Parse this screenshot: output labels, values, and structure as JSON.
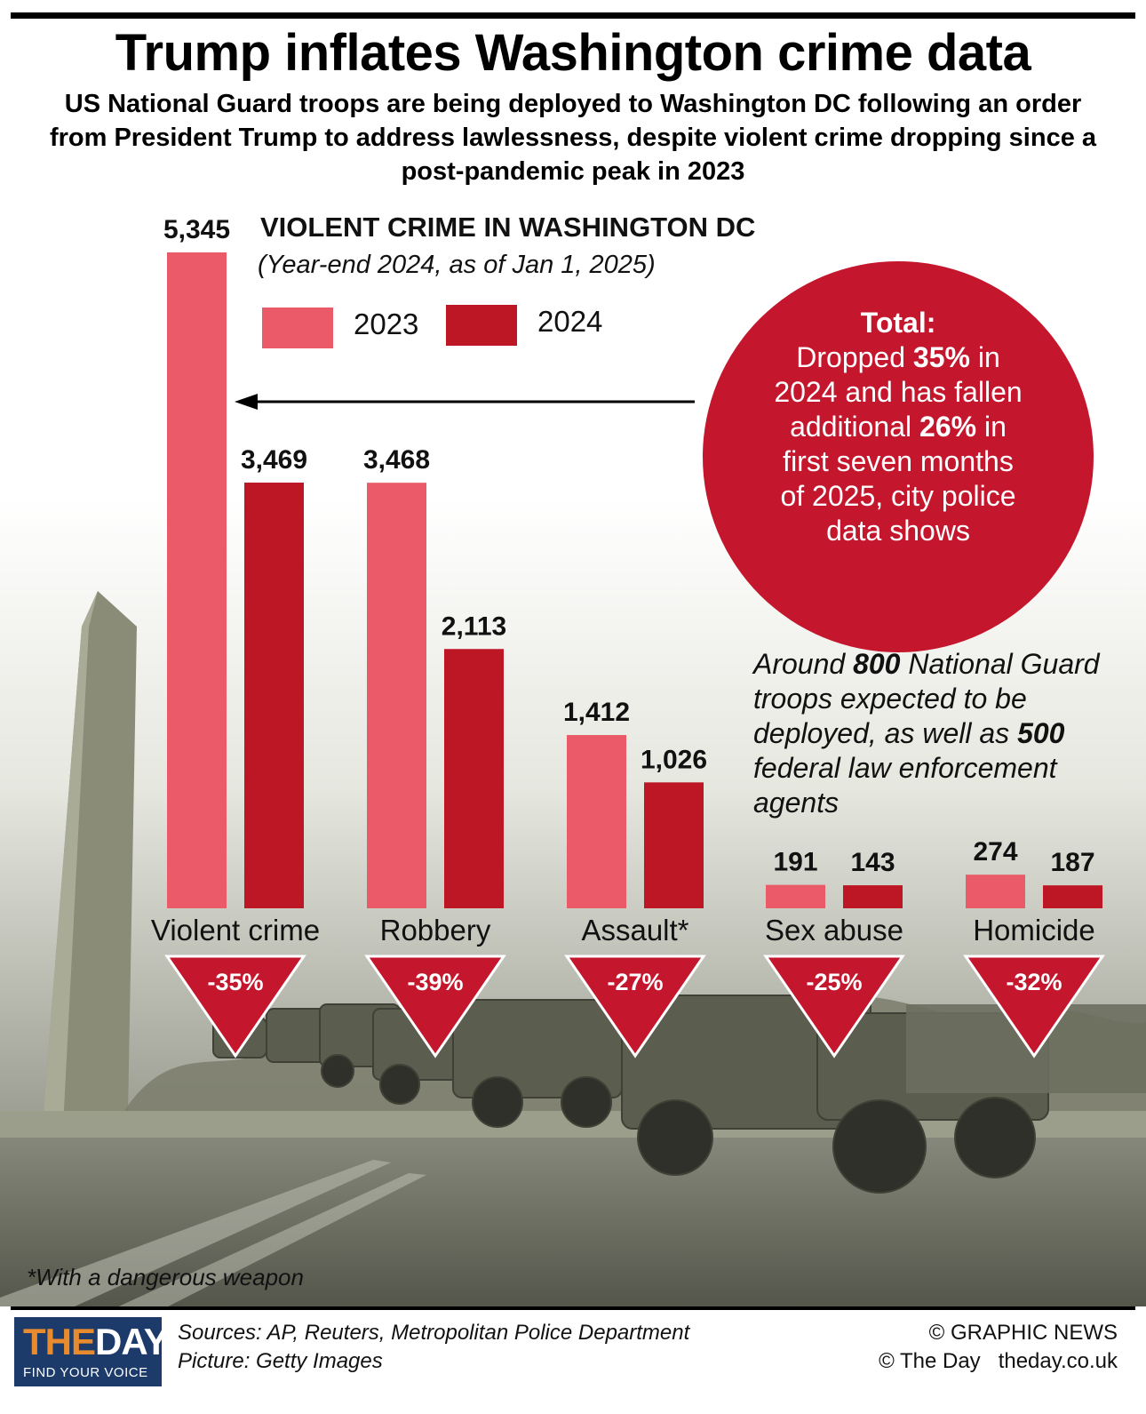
{
  "headline": "Trump inflates Washington crime data",
  "subheadline": "US National Guard troops are being deployed to Washington DC following an order from President Trump to address lawlessness, despite violent crime dropping since a post-pandemic peak in 2023",
  "chart_data": {
    "type": "bar",
    "title": "VIOLENT CRIME IN WASHINGTON DC",
    "subtitle": "(Year-end 2024, as of Jan 1, 2025)",
    "categories": [
      "Violent crime",
      "Robbery",
      "Assault*",
      "Sex abuse",
      "Homicide"
    ],
    "series": [
      {
        "name": "2023",
        "color": "#ea5a68",
        "values": [
          5345,
          3468,
          1412,
          191,
          274
        ],
        "labels": [
          "5,345",
          "3,468",
          "1,412",
          "191",
          "274"
        ]
      },
      {
        "name": "2024",
        "color": "#bd1625",
        "values": [
          3469,
          2113,
          1026,
          143,
          187
        ],
        "labels": [
          "3,469",
          "2,113",
          "1,026",
          "143",
          "187"
        ]
      }
    ],
    "changes": [
      "-35%",
      "-39%",
      "-27%",
      "-25%",
      "-32%"
    ],
    "ylim": [
      0,
      5345
    ],
    "grid": false,
    "legend_position": "top"
  },
  "callout": {
    "heading": "Total:",
    "line1_a": "Dropped ",
    "line1_b": "35%",
    "line1_c": " in",
    "line2": "2024 and has fallen",
    "line3_a": "additional ",
    "line3_b": "26%",
    "line3_c": " in",
    "line4": "first seven months",
    "line5": "of 2025, city police",
    "line6": "data shows"
  },
  "troops_note": {
    "a": "Around ",
    "b": "800",
    "c": " National Guard troops expected to be deployed, as well as ",
    "d": "500",
    "e": " federal law enforcement agents"
  },
  "footnote": "*With a dangerous weapon",
  "footer": {
    "logo_the": "THE",
    "logo_day": "DAY",
    "logo_tagline": "FIND YOUR VOICE",
    "sources": "Sources: AP, Reuters, Metropolitan Police Department",
    "picture": "Picture: Getty Images",
    "credit1": "© GRAPHIC NEWS",
    "credit2": "© The Day   theday.co.uk"
  },
  "colors": {
    "accent_red": "#c4162c",
    "bar_2023": "#ea5a68",
    "bar_2024": "#bd1625"
  }
}
